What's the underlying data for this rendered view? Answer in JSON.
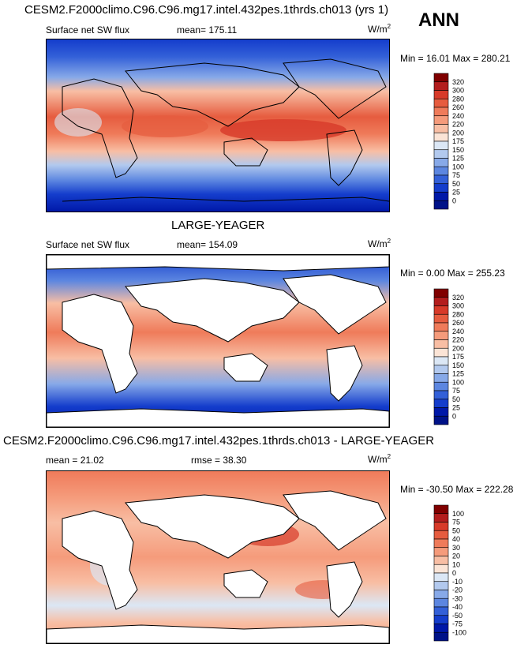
{
  "figure": {
    "main_title": "CESM2.F2000climo.C96.C96.mg17.intel.432pes.1thrds.ch013 (yrs 1)",
    "season": "ANN"
  },
  "panels": [
    {
      "id": "model",
      "variable": "Surface net SW flux",
      "stat_text": "mean= 175.11",
      "units_base": "W/m",
      "units_exp": "2",
      "range_text": "Min =  16.01 Max = 280.21",
      "levels": [
        "320",
        "300",
        "280",
        "260",
        "240",
        "220",
        "200",
        "175",
        "150",
        "125",
        "100",
        "75",
        "50",
        "25",
        "0"
      ],
      "colors": [
        "#800000",
        "#b31d1d",
        "#d73a29",
        "#e65c3f",
        "#ef7b5a",
        "#f59b7b",
        "#f8bea4",
        "#fbe4d6",
        "#dbe7f5",
        "#b2c9ee",
        "#87a9e8",
        "#5c86e0",
        "#3360d8",
        "#143dcc",
        "#0018a8",
        "#001288"
      ],
      "cells_value_scale": [
        0,
        320
      ]
    },
    {
      "id": "obs",
      "title": "LARGE-YEAGER",
      "variable": "Surface net SW flux",
      "stat_text": "mean= 154.09",
      "units_base": "W/m",
      "units_exp": "2",
      "range_text": "Min =   0.00 Max = 255.23",
      "levels": [
        "320",
        "300",
        "280",
        "260",
        "240",
        "220",
        "200",
        "175",
        "150",
        "125",
        "100",
        "75",
        "50",
        "25",
        "0"
      ],
      "colors": [
        "#800000",
        "#b31d1d",
        "#d73a29",
        "#e65c3f",
        "#ef7b5a",
        "#f59b7b",
        "#f8bea4",
        "#fbe4d6",
        "#dbe7f5",
        "#b2c9ee",
        "#87a9e8",
        "#5c86e0",
        "#3360d8",
        "#143dcc",
        "#0018a8",
        "#001288"
      ]
    },
    {
      "id": "diff",
      "title": "CESM2.F2000climo.C96.C96.mg17.intel.432pes.1thrds.ch013 - LARGE-YEAGER",
      "stat_text": "mean =  21.02",
      "rmse_text": "rmse =  38.30",
      "units_base": "W/m",
      "units_exp": "2",
      "range_text": "Min = -30.50 Max = 222.28",
      "levels": [
        "100",
        "75",
        "50",
        "40",
        "30",
        "20",
        "10",
        "0",
        "-10",
        "-20",
        "-30",
        "-40",
        "-50",
        "-75",
        "-100"
      ],
      "colors": [
        "#800000",
        "#b31d1d",
        "#d73a29",
        "#e65c3f",
        "#ef7b5a",
        "#f59b7b",
        "#f8bea4",
        "#fbe4d6",
        "#dbe7f5",
        "#b2c9ee",
        "#87a9e8",
        "#5c86e0",
        "#3360d8",
        "#143dcc",
        "#0018a8",
        "#001288"
      ]
    }
  ]
}
